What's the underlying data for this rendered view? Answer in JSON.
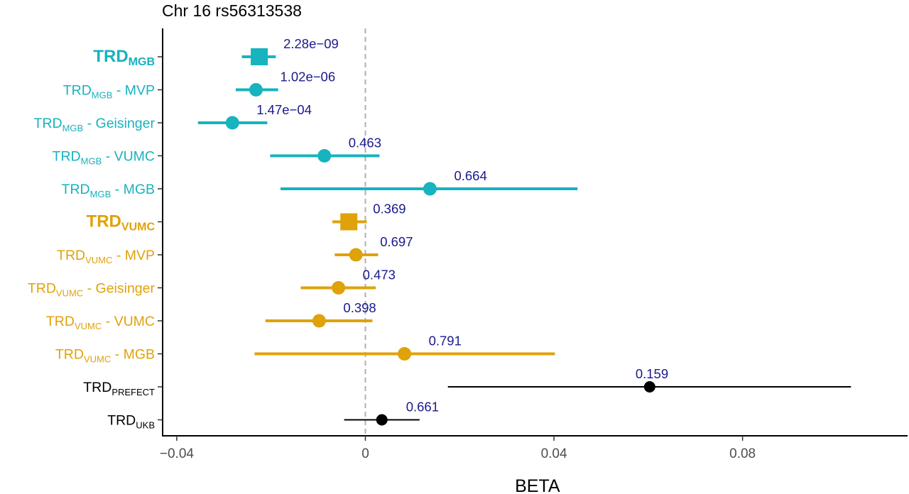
{
  "chart_data": {
    "type": "forest",
    "title": "Chr 16 rs56313538",
    "xlabel": "BETA",
    "xlim": [
      -0.043,
      0.115
    ],
    "xticks": [
      -0.04,
      0,
      0.04,
      0.08
    ],
    "xtick_labels": [
      "−0.04",
      "0",
      "0.04",
      "0.08"
    ],
    "reference_line": 0,
    "grid": false,
    "colors": {
      "MGB": "#17b3be",
      "VUMC": "#e0a20a",
      "other": "#000000",
      "pvalue": "#1a1a8c",
      "refline": "#b0b0b0"
    },
    "rows": [
      {
        "label": "TRD",
        "sub": "MGB",
        "suffix": "",
        "bold": true,
        "group": "MGB",
        "shape": "square",
        "beta": -0.0225,
        "ci": [
          -0.0262,
          -0.019
        ],
        "p": "2.28e−09"
      },
      {
        "label": "TRD",
        "sub": "MGB",
        "suffix": " - MVP",
        "bold": false,
        "group": "MGB",
        "shape": "circle",
        "beta": -0.0232,
        "ci": [
          -0.0275,
          -0.0185
        ],
        "p": "1.02e−06"
      },
      {
        "label": "TRD",
        "sub": "MGB",
        "suffix": " - Geisinger",
        "bold": false,
        "group": "MGB",
        "shape": "circle",
        "beta": -0.0282,
        "ci": [
          -0.0355,
          -0.0208
        ],
        "p": "1.47e−04"
      },
      {
        "label": "TRD",
        "sub": "MGB",
        "suffix": " - VUMC",
        "bold": false,
        "group": "MGB",
        "shape": "circle",
        "beta": -0.0087,
        "ci": [
          -0.0202,
          0.003
        ],
        "p": "0.463"
      },
      {
        "label": "TRD",
        "sub": "MGB",
        "suffix": " - MGB",
        "bold": false,
        "group": "MGB",
        "shape": "circle",
        "beta": 0.0137,
        "ci": [
          -0.018,
          0.045
        ],
        "p": "0.664"
      },
      {
        "label": "TRD",
        "sub": "VUMC",
        "suffix": "",
        "bold": true,
        "group": "VUMC",
        "shape": "square",
        "beta": -0.0035,
        "ci": [
          -0.007,
          0.0003
        ],
        "p": "0.369"
      },
      {
        "label": "TRD",
        "sub": "VUMC",
        "suffix": " - MVP",
        "bold": false,
        "group": "VUMC",
        "shape": "circle",
        "beta": -0.002,
        "ci": [
          -0.0065,
          0.0027
        ],
        "p": "0.697"
      },
      {
        "label": "TRD",
        "sub": "VUMC",
        "suffix": " - Geisinger",
        "bold": false,
        "group": "VUMC",
        "shape": "circle",
        "beta": -0.0057,
        "ci": [
          -0.0137,
          0.0022
        ],
        "p": "0.473"
      },
      {
        "label": "TRD",
        "sub": "VUMC",
        "suffix": " - VUMC",
        "bold": false,
        "group": "VUMC",
        "shape": "circle",
        "beta": -0.0098,
        "ci": [
          -0.0212,
          0.0015
        ],
        "p": "0.398"
      },
      {
        "label": "TRD",
        "sub": "VUMC",
        "suffix": " - MGB",
        "bold": false,
        "group": "VUMC",
        "shape": "circle",
        "beta": 0.0083,
        "ci": [
          -0.0235,
          0.0402
        ],
        "p": "0.791"
      },
      {
        "label": "TRD",
        "sub": "PREFECT",
        "suffix": "",
        "bold": false,
        "group": "other",
        "shape": "circle",
        "beta": 0.0603,
        "ci": [
          0.0175,
          0.103
        ],
        "p": "0.159"
      },
      {
        "label": "TRD",
        "sub": "UKB",
        "suffix": "",
        "bold": false,
        "group": "other",
        "shape": "circle",
        "beta": 0.0035,
        "ci": [
          -0.0045,
          0.0115
        ],
        "p": "0.661"
      }
    ]
  }
}
